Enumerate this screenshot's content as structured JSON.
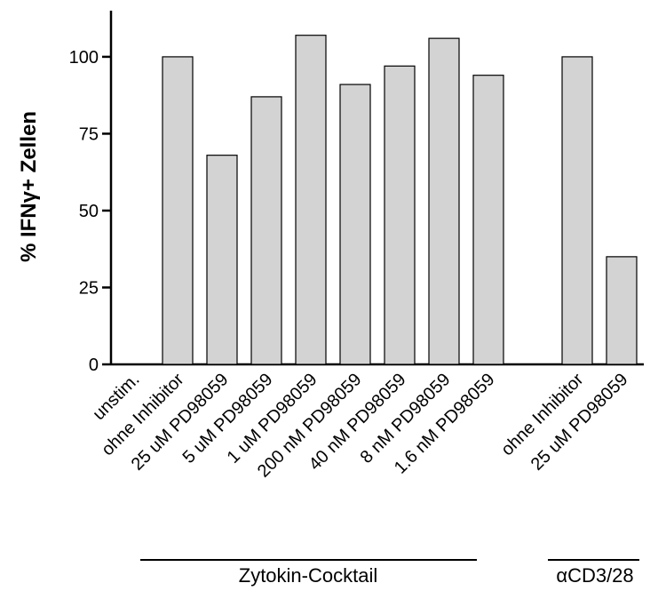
{
  "chart_data": {
    "type": "bar",
    "ylabel": "% IFNγ+ Zellen",
    "categories": [
      "unstim.",
      "ohne Inhibitor",
      "25 uM PD98059",
      "5 uM PD98059",
      "1 uM PD98059",
      "200 nM PD98059",
      "40 nM PD98059",
      "8 nM PD98059",
      "1.6 nM PD98059",
      null,
      "ohne Inhibitor",
      "25 uM PD98059"
    ],
    "values": [
      0,
      100,
      68,
      87,
      107,
      91,
      97,
      106,
      94,
      null,
      100,
      35
    ],
    "color": "#d3d3d3",
    "ylim": [
      0,
      115
    ],
    "yticks": [
      0,
      25,
      50,
      75,
      100
    ],
    "grid": false,
    "groups": [
      "Zytokin-Cocktail",
      "αCD3/28"
    ]
  }
}
